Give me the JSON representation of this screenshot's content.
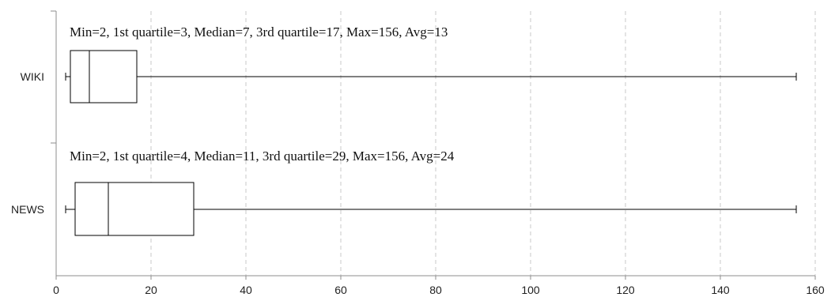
{
  "chart_data": {
    "type": "boxplot",
    "orientation": "horizontal",
    "xlim": [
      0,
      160
    ],
    "xticks": [
      "0",
      "20",
      "40",
      "60",
      "80",
      "100",
      "120",
      "140",
      "160"
    ],
    "grid": "vertical-dashed",
    "categories": [
      "WIKI",
      "NEWS"
    ],
    "boxes": [
      {
        "name": "WIKI",
        "min": 2,
        "q1": 3,
        "median": 7,
        "q3": 17,
        "max": 156,
        "avg": 13,
        "annotation": "Min=2, 1st quartile=3, Median=7, 3rd quartile=17, Max=156, Avg=13"
      },
      {
        "name": "NEWS",
        "min": 2,
        "q1": 4,
        "median": 11,
        "q3": 29,
        "max": 156,
        "avg": 24,
        "annotation": "Min=2, 1st quartile=4, Median=11, 3rd quartile=29, Max=156, Avg=24"
      }
    ]
  }
}
